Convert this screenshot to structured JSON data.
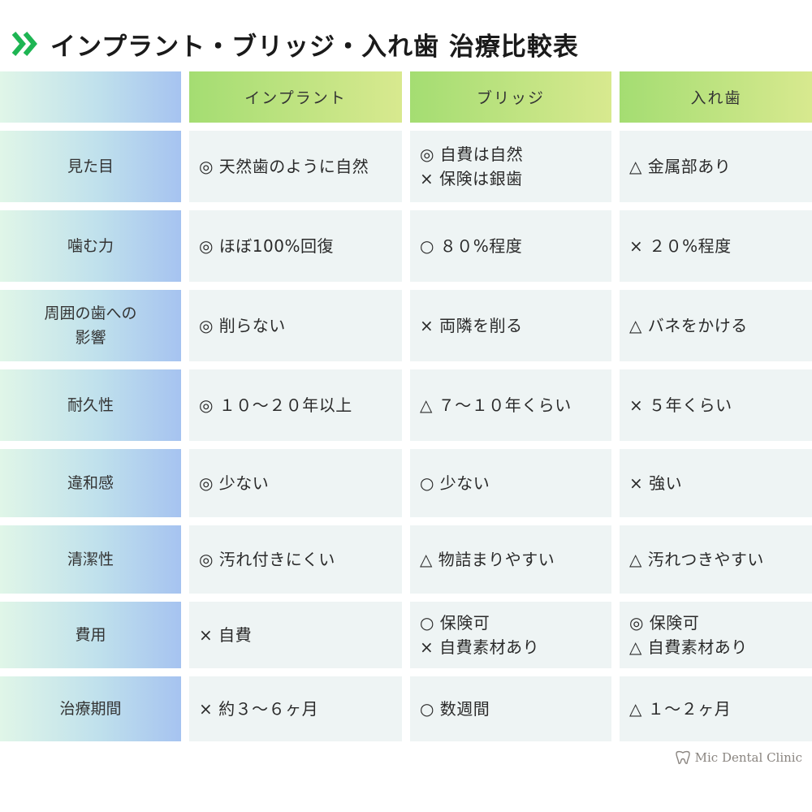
{
  "title": "インプラント・ブリッジ・入れ歯 治療比較表",
  "icons": {
    "title": "double-chevron-right-icon",
    "logo": "tooth-icon"
  },
  "colors": {
    "accent": "#1eb553",
    "header": "#b7e27c",
    "label": "#bcd9ee",
    "cell": "#eef4f4"
  },
  "columns": [
    "インプラント",
    "ブリッジ",
    "入れ歯"
  ],
  "rows": [
    {
      "label": [
        "見た目"
      ],
      "cells": [
        [
          "◎ 天然歯のように自然"
        ],
        [
          "◎ 自費は自然",
          "× 保険は銀歯"
        ],
        [
          "△ 金属部あり"
        ]
      ]
    },
    {
      "label": [
        "噛む力"
      ],
      "cells": [
        [
          "◎ ほぼ100%回復"
        ],
        [
          "○ ８０%程度"
        ],
        [
          "× ２０%程度"
        ]
      ]
    },
    {
      "label": [
        "周囲の歯への",
        "影響"
      ],
      "cells": [
        [
          "◎ 削らない"
        ],
        [
          "× 両隣を削る"
        ],
        [
          "△ バネをかける"
        ]
      ]
    },
    {
      "label": [
        "耐久性"
      ],
      "cells": [
        [
          "◎ １０～２０年以上"
        ],
        [
          "△ ７～１０年くらい"
        ],
        [
          "× ５年くらい"
        ]
      ]
    },
    {
      "label": [
        "違和感"
      ],
      "cells": [
        [
          "◎ 少ない"
        ],
        [
          "○ 少ない"
        ],
        [
          "× 強い"
        ]
      ]
    },
    {
      "label": [
        "清潔性"
      ],
      "cells": [
        [
          "◎ 汚れ付きにくい"
        ],
        [
          "△ 物詰まりやすい"
        ],
        [
          "△ 汚れつきやすい"
        ]
      ]
    },
    {
      "label": [
        "費用"
      ],
      "cells": [
        [
          "× 自費"
        ],
        [
          "○ 保険可",
          "× 自費素材あり"
        ],
        [
          "◎ 保険可",
          "△ 自費素材あり"
        ]
      ]
    },
    {
      "label": [
        "治療期間"
      ],
      "cells": [
        [
          "× 約３～６ヶ月"
        ],
        [
          "○ 数週間"
        ],
        [
          "△ １～２ヶ月"
        ]
      ]
    }
  ],
  "footer": {
    "brand": "Mic Dental Clinic"
  }
}
